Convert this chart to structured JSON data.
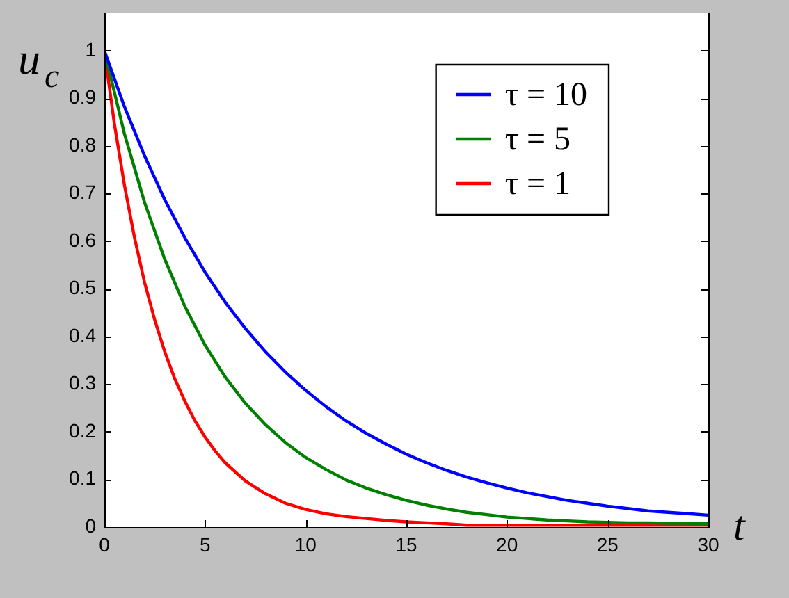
{
  "chart_data": {
    "type": "line",
    "xlabel": "t",
    "ylabel": "u$_{c}$",
    "xlim": [
      0,
      30
    ],
    "ylim": [
      0,
      1.08
    ],
    "xticks": [
      0,
      5,
      10,
      15,
      20,
      25,
      30
    ],
    "yticks": [
      0,
      0.1,
      0.2,
      0.3,
      0.4,
      0.5,
      0.6,
      0.7,
      0.8,
      0.9,
      1
    ],
    "grid": false,
    "legend": "top right",
    "marker": "none",
    "line_style": "solid",
    "series": [
      {
        "name": "τ = 10",
        "color": "#0000ff",
        "x": [
          0,
          1,
          2,
          3,
          4,
          5,
          6,
          7,
          8,
          9,
          10,
          11,
          12,
          13,
          14,
          15,
          16,
          17,
          18,
          19,
          20,
          21,
          22,
          23,
          24,
          25,
          26,
          27,
          28,
          29,
          30
        ],
        "values": [
          1.0,
          0.882,
          0.779,
          0.687,
          0.607,
          0.535,
          0.472,
          0.417,
          0.368,
          0.325,
          0.287,
          0.253,
          0.223,
          0.197,
          0.174,
          0.153,
          0.135,
          0.119,
          0.105,
          0.093,
          0.082,
          0.072,
          0.064,
          0.056,
          0.05,
          0.044,
          0.039,
          0.034,
          0.031,
          0.028,
          0.025
        ]
      },
      {
        "name": "τ = 5",
        "color": "#008000",
        "x": [
          0,
          1,
          2,
          3,
          4,
          5,
          6,
          7,
          8,
          9,
          10,
          11,
          12,
          13,
          14,
          15,
          16,
          17,
          18,
          19,
          20,
          21,
          22,
          23,
          24,
          25,
          26,
          27,
          28,
          29,
          30
        ],
        "values": [
          1.0,
          0.825,
          0.681,
          0.562,
          0.463,
          0.382,
          0.315,
          0.26,
          0.215,
          0.177,
          0.146,
          0.121,
          0.099,
          0.082,
          0.068,
          0.056,
          0.046,
          0.038,
          0.031,
          0.026,
          0.021,
          0.018,
          0.015,
          0.013,
          0.011,
          0.01,
          0.009,
          0.009,
          0.008,
          0.008,
          0.007
        ]
      },
      {
        "name": "τ = 1",
        "color": "#ff0000",
        "x": [
          0,
          0.5,
          1,
          1.5,
          2,
          2.5,
          3,
          3.5,
          4,
          4.5,
          5,
          5.5,
          6,
          7,
          8,
          9,
          10,
          11,
          12,
          13,
          14,
          15,
          16,
          17,
          18,
          19,
          20,
          21,
          22,
          23,
          24,
          25,
          26,
          27,
          28,
          29,
          30
        ],
        "values": [
          1.0,
          0.846,
          0.717,
          0.607,
          0.513,
          0.435,
          0.368,
          0.311,
          0.264,
          0.223,
          0.189,
          0.16,
          0.135,
          0.097,
          0.07,
          0.05,
          0.037,
          0.028,
          0.022,
          0.018,
          0.014,
          0.011,
          0.009,
          0.007,
          0.004,
          0.004,
          0.004,
          0.004,
          0.004,
          0.004,
          0.004,
          0.004,
          0.004,
          0.004,
          0.004,
          0.004,
          0.004
        ]
      }
    ]
  }
}
